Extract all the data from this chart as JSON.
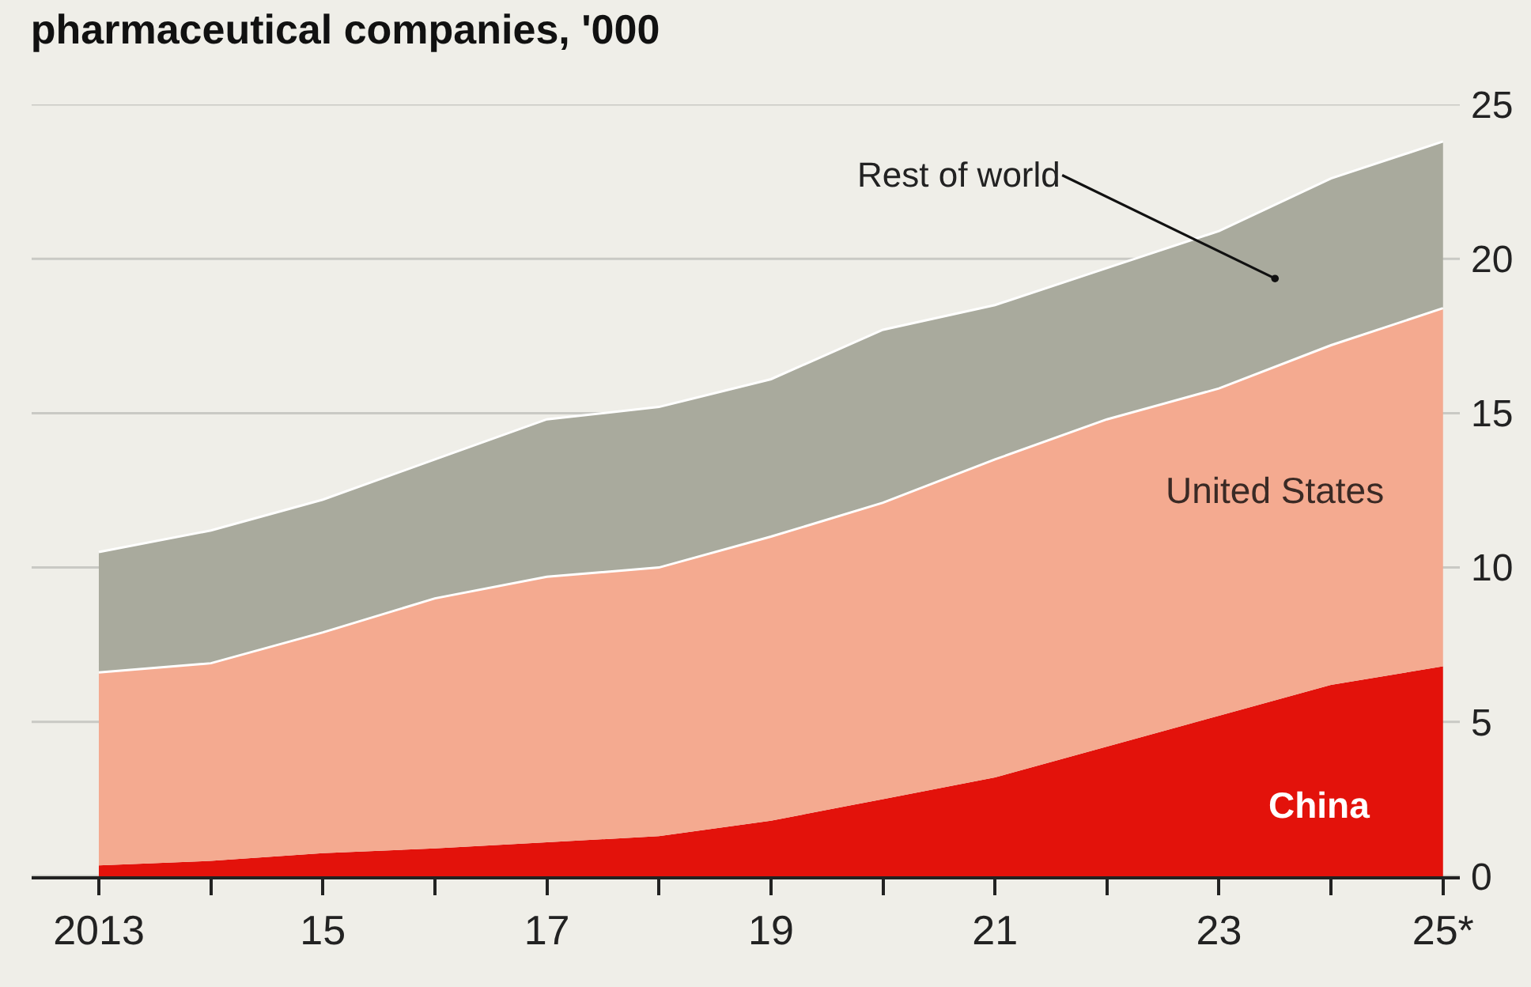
{
  "chart_data": {
    "type": "area",
    "stacked": true,
    "title": "pharmaceutical companies, '000",
    "categories": [
      "2013",
      null,
      "15",
      null,
      "17",
      null,
      "19",
      null,
      "21",
      null,
      "23",
      null,
      "25*"
    ],
    "series": [
      {
        "name": "China",
        "color": "#e3120b",
        "values": [
          0.35,
          0.5,
          0.75,
          0.9,
          1.1,
          1.3,
          1.8,
          2.5,
          3.2,
          4.2,
          5.2,
          6.2,
          6.8
        ]
      },
      {
        "name": "United States",
        "color": "#f4aa90",
        "values": [
          6.25,
          6.4,
          7.15,
          8.1,
          8.6,
          8.7,
          9.2,
          9.6,
          10.3,
          10.6,
          10.6,
          11.0,
          11.6
        ]
      },
      {
        "name": "Rest of world",
        "color": "#a9aa9d",
        "values": [
          3.9,
          4.3,
          4.3,
          4.5,
          5.1,
          5.2,
          5.1,
          5.6,
          5.0,
          4.9,
          5.1,
          5.4,
          5.4
        ]
      }
    ],
    "ylim": [
      0,
      25
    ],
    "yticks": [
      0,
      5,
      10,
      15,
      20,
      25
    ],
    "grid": "y",
    "legend": false
  }
}
